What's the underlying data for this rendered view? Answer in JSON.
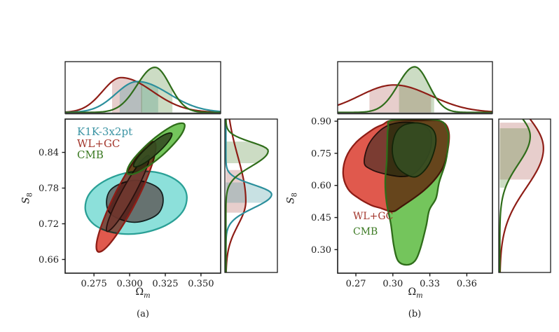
{
  "figure": {
    "background": "#ffffff"
  },
  "chart_data": [
    {
      "id": "a",
      "type": "contour-corner",
      "caption": "(a)",
      "xlabel_main": "Ω",
      "xlabel_sub": "m",
      "ylabel_main": "S",
      "ylabel_sub": "8",
      "xlim": [
        0.2548,
        0.3638
      ],
      "ylim": [
        0.637,
        0.896
      ],
      "xticks": [
        0.275,
        0.3,
        0.325,
        0.35
      ],
      "xtick_labels": [
        "0.275",
        "0.300",
        "0.325",
        "0.350"
      ],
      "yticks": [
        0.66,
        0.72,
        0.78,
        0.84
      ],
      "ytick_labels": [
        "0.66",
        "0.72",
        "0.78",
        "0.84"
      ],
      "grid": false,
      "legend_position": "upper-left",
      "legend": [
        {
          "label": "K1K-3x2pt",
          "color": "#3a93a3"
        },
        {
          "label": "WL+GC",
          "color": "#a3362c"
        },
        {
          "label": "CMB",
          "color": "#3c7a23"
        }
      ],
      "datasets": [
        {
          "name": "K1K-3x2pt",
          "line_color": "#2aa096",
          "inner_line_color": "#14201f",
          "outer_fill": "#8ce0da",
          "inner_fill": "rgba(100,107,106,0.95)",
          "outer_points": [
            [
              0.34,
              0.768
            ],
            [
              0.337,
              0.74
            ],
            [
              0.325,
              0.717
            ],
            [
              0.307,
              0.704
            ],
            [
              0.289,
              0.705
            ],
            [
              0.275,
              0.719
            ],
            [
              0.269,
              0.743
            ],
            [
              0.272,
              0.771
            ],
            [
              0.284,
              0.794
            ],
            [
              0.301,
              0.807
            ],
            [
              0.32,
              0.806
            ],
            [
              0.334,
              0.791
            ]
          ],
          "inner_points": [
            [
              0.3235,
              0.76
            ],
            [
              0.319,
              0.735
            ],
            [
              0.3036,
              0.7225
            ],
            [
              0.288,
              0.734
            ],
            [
              0.2838,
              0.756
            ],
            [
              0.288,
              0.78
            ],
            [
              0.3036,
              0.793
            ],
            [
              0.319,
              0.782
            ]
          ]
        },
        {
          "name": "WL+GC",
          "line_color": "#8e1d16",
          "inner_line_color": "#2a110e",
          "outer_fill": "#e0594d",
          "inner_fill": "rgba(112,56,48,0.9)",
          "outer_points": [
            [
              0.3172,
              0.8576
            ],
            [
              0.318,
              0.841
            ],
            [
              0.3134,
              0.804
            ],
            [
              0.3045,
              0.7567
            ],
            [
              0.2937,
              0.7118
            ],
            [
              0.284,
              0.681
            ],
            [
              0.2779,
              0.673
            ],
            [
              0.277,
              0.6897
            ],
            [
              0.2817,
              0.7266
            ],
            [
              0.2905,
              0.774
            ],
            [
              0.3013,
              0.8189
            ],
            [
              0.311,
              0.8495
            ]
          ],
          "inner_points": [
            [
              0.3134,
              0.835
            ],
            [
              0.3118,
              0.8129
            ],
            [
              0.3026,
              0.766
            ],
            [
              0.2912,
              0.7224
            ],
            [
              0.2841,
              0.7072
            ],
            [
              0.2857,
              0.7296
            ],
            [
              0.2949,
              0.7763
            ],
            [
              0.3063,
              0.82
            ]
          ]
        },
        {
          "name": "CMB",
          "line_color": "#2f6d1a",
          "inner_line_color": "#132509",
          "outer_fill": "#74c55c",
          "inner_fill": "rgba(53,78,34,0.9)",
          "outer_points": [
            [
              0.3383,
              0.8878
            ],
            [
              0.3355,
              0.8675
            ],
            [
              0.3226,
              0.8344
            ],
            [
              0.3073,
              0.8082
            ],
            [
              0.2985,
              0.8042
            ],
            [
              0.3013,
              0.8244
            ],
            [
              0.3142,
              0.8575
            ],
            [
              0.3295,
              0.8838
            ]
          ],
          "inner_points": [
            [
              0.3295,
              0.872
            ],
            [
              0.3274,
              0.8589
            ],
            [
              0.3188,
              0.8372
            ],
            [
              0.3086,
              0.8194
            ],
            [
              0.3029,
              0.8163
            ],
            [
              0.305,
              0.8294
            ],
            [
              0.3136,
              0.8513
            ],
            [
              0.3237,
              0.8689
            ]
          ]
        }
      ],
      "marginal_top": {
        "curves": [
          {
            "name": "WL+GC",
            "color": "#8e1d16",
            "mode": 0.294,
            "sigma_lo": 0.013,
            "sigma_hi": 0.022,
            "amp": 0.71,
            "band": [
              0.2877,
              0.3088
            ],
            "band_fill": "rgba(158,60,52,0.25)"
          },
          {
            "name": "K1K-3x2pt",
            "color": "#2b8f9c",
            "mode": 0.3054,
            "sigma_lo": 0.015,
            "sigma_hi": 0.022,
            "amp": 0.63,
            "band": [
              0.293,
              0.32
            ],
            "band_fill": "rgba(58,147,155,0.28)"
          },
          {
            "name": "CMB",
            "color": "#2f6d1a",
            "mode": 0.3177,
            "sigma_lo": 0.0125,
            "sigma_hi": 0.0105,
            "amp": 0.92,
            "band": [
              0.308,
              0.33
            ],
            "band_fill": "rgba(72,130,42,0.28)"
          }
        ]
      },
      "marginal_right": {
        "curves": [
          {
            "name": "WL+GC",
            "color": "#8e1d16",
            "mode": 0.757,
            "sigma_lo": 0.04,
            "sigma_hi": 0.075,
            "amp": 0.4,
            "band": [
              0.738,
              0.81
            ],
            "band_fill": "rgba(158,60,52,0.25)"
          },
          {
            "name": "K1K-3x2pt",
            "color": "#2b8f9c",
            "mode": 0.769,
            "sigma_lo": 0.023,
            "sigma_hi": 0.016,
            "amp": 0.92,
            "band": [
              0.7546,
              0.789
            ],
            "band_fill": "rgba(58,147,155,0.28)"
          },
          {
            "name": "CMB",
            "color": "#2f6d1a",
            "mode": 0.8425,
            "sigma_lo": 0.026,
            "sigma_hi": 0.0145,
            "amp": 0.85,
            "band": [
              0.8215,
              0.858
            ],
            "band_fill": "rgba(72,130,42,0.28)"
          }
        ]
      }
    },
    {
      "id": "b",
      "type": "contour-corner",
      "caption": "(b)",
      "xlabel_main": "Ω",
      "xlabel_sub": "m",
      "ylabel_main": "S",
      "ylabel_sub": "8",
      "xlim": [
        0.2552,
        0.3808
      ],
      "ylim": [
        0.19,
        0.91
      ],
      "xticks": [
        0.27,
        0.3,
        0.33,
        0.36
      ],
      "xtick_labels": [
        "0.27",
        "0.30",
        "0.33",
        "0.36"
      ],
      "yticks": [
        0.3,
        0.45,
        0.6,
        0.75,
        0.9
      ],
      "ytick_labels": [
        "0.30",
        "0.45",
        "0.60",
        "0.75",
        "0.90"
      ],
      "grid": false,
      "legend_position": "lower-left",
      "legend": [
        {
          "label": "WL+GC",
          "color": "#a3362c"
        },
        {
          "label": "CMB",
          "color": "#3c7a23"
        }
      ],
      "datasets": [
        {
          "name": "WL+GC",
          "line_color": "#8e1d16",
          "inner_line_color": "#2a110e",
          "outer_fill": "#e0594d",
          "inner_fill": "rgba(112,56,48,0.9)",
          "outer_points": [
            [
              0.292,
              0.885
            ],
            [
              0.299,
              0.9035
            ],
            [
              0.32,
              0.9035
            ],
            [
              0.339,
              0.9
            ],
            [
              0.3455,
              0.8445
            ],
            [
              0.3433,
              0.73
            ],
            [
              0.3376,
              0.6547
            ],
            [
              0.3251,
              0.576
            ],
            [
              0.3069,
              0.5008
            ],
            [
              0.2995,
              0.478
            ],
            [
              0.2895,
              0.495
            ],
            [
              0.2825,
              0.5074
            ],
            [
              0.2723,
              0.54
            ],
            [
              0.2637,
              0.5827
            ],
            [
              0.2597,
              0.6515
            ],
            [
              0.262,
              0.73
            ],
            [
              0.27,
              0.8
            ],
            [
              0.2836,
              0.861
            ]
          ],
          "inner_points": [
            [
              0.2768,
              0.7071
            ],
            [
              0.2808,
              0.7955
            ],
            [
              0.2921,
              0.8675
            ],
            [
              0.3052,
              0.8937
            ],
            [
              0.3223,
              0.8872
            ],
            [
              0.3308,
              0.8446
            ],
            [
              0.3296,
              0.753
            ],
            [
              0.3194,
              0.6645
            ],
            [
              0.3081,
              0.6416
            ],
            [
              0.2927,
              0.6547
            ],
            [
              0.2825,
              0.6743
            ]
          ]
        },
        {
          "name": "CMB",
          "line_color": "#2f6d1a",
          "inner_line_color": "#132509",
          "outer_fill": "#74c55c",
          "inner_fill": "rgba(53,78,34,0.9)",
          "outer_points": [
            [
              0.3,
              0.905
            ],
            [
              0.336,
              0.905
            ],
            [
              0.344,
              0.86
            ],
            [
              0.345,
              0.81
            ],
            [
              0.343,
              0.714
            ],
            [
              0.3376,
              0.615
            ],
            [
              0.335,
              0.54
            ],
            [
              0.3296,
              0.485
            ],
            [
              0.327,
              0.41
            ],
            [
              0.3223,
              0.305
            ],
            [
              0.3177,
              0.246
            ],
            [
              0.3109,
              0.229
            ],
            [
              0.3041,
              0.249
            ],
            [
              0.3007,
              0.321
            ],
            [
              0.2984,
              0.419
            ],
            [
              0.295,
              0.517
            ],
            [
              0.2938,
              0.615
            ],
            [
              0.295,
              0.714
            ],
            [
              0.2955,
              0.812
            ],
            [
              0.2962,
              0.87
            ]
          ],
          "inner_points": [
            [
              0.2995,
              0.769
            ],
            [
              0.3024,
              0.8446
            ],
            [
              0.3098,
              0.8839
            ],
            [
              0.3223,
              0.8904
            ],
            [
              0.3325,
              0.8609
            ],
            [
              0.3348,
              0.7955
            ],
            [
              0.3291,
              0.6973
            ],
            [
              0.3194,
              0.6416
            ],
            [
              0.3098,
              0.6547
            ],
            [
              0.3024,
              0.6973
            ]
          ]
        }
      ],
      "marginal_top": {
        "curves": [
          {
            "name": "WL+GC",
            "color": "#8e1d16",
            "mode": 0.301,
            "sigma_lo": 0.028,
            "sigma_hi": 0.03,
            "amp": 0.56,
            "band": [
              0.281,
              0.331
            ],
            "band_fill": "rgba(158,60,52,0.25)"
          },
          {
            "name": "CMB",
            "color": "#2f6d1a",
            "mode": 0.3177,
            "sigma_lo": 0.0135,
            "sigma_hi": 0.0115,
            "amp": 0.93,
            "band": [
              0.305,
              0.3335
            ],
            "band_fill": "rgba(72,130,42,0.28)"
          }
        ]
      },
      "marginal_right": {
        "curves": [
          {
            "name": "WL+GC",
            "color": "#8e1d16",
            "mode": 0.773,
            "sigma_lo": 0.185,
            "sigma_hi": 0.16,
            "amp": 0.89,
            "band": [
              0.626,
              0.893
            ],
            "band_fill": "rgba(158,60,52,0.25)"
          },
          {
            "name": "CMB",
            "color": "#2f6d1a",
            "mode": 0.83,
            "sigma_lo": 0.132,
            "sigma_hi": 0.107,
            "amp": 0.62,
            "band": [
              0.588,
              0.867
            ],
            "band_fill": "rgba(72,130,42,0.28)"
          }
        ]
      }
    }
  ]
}
